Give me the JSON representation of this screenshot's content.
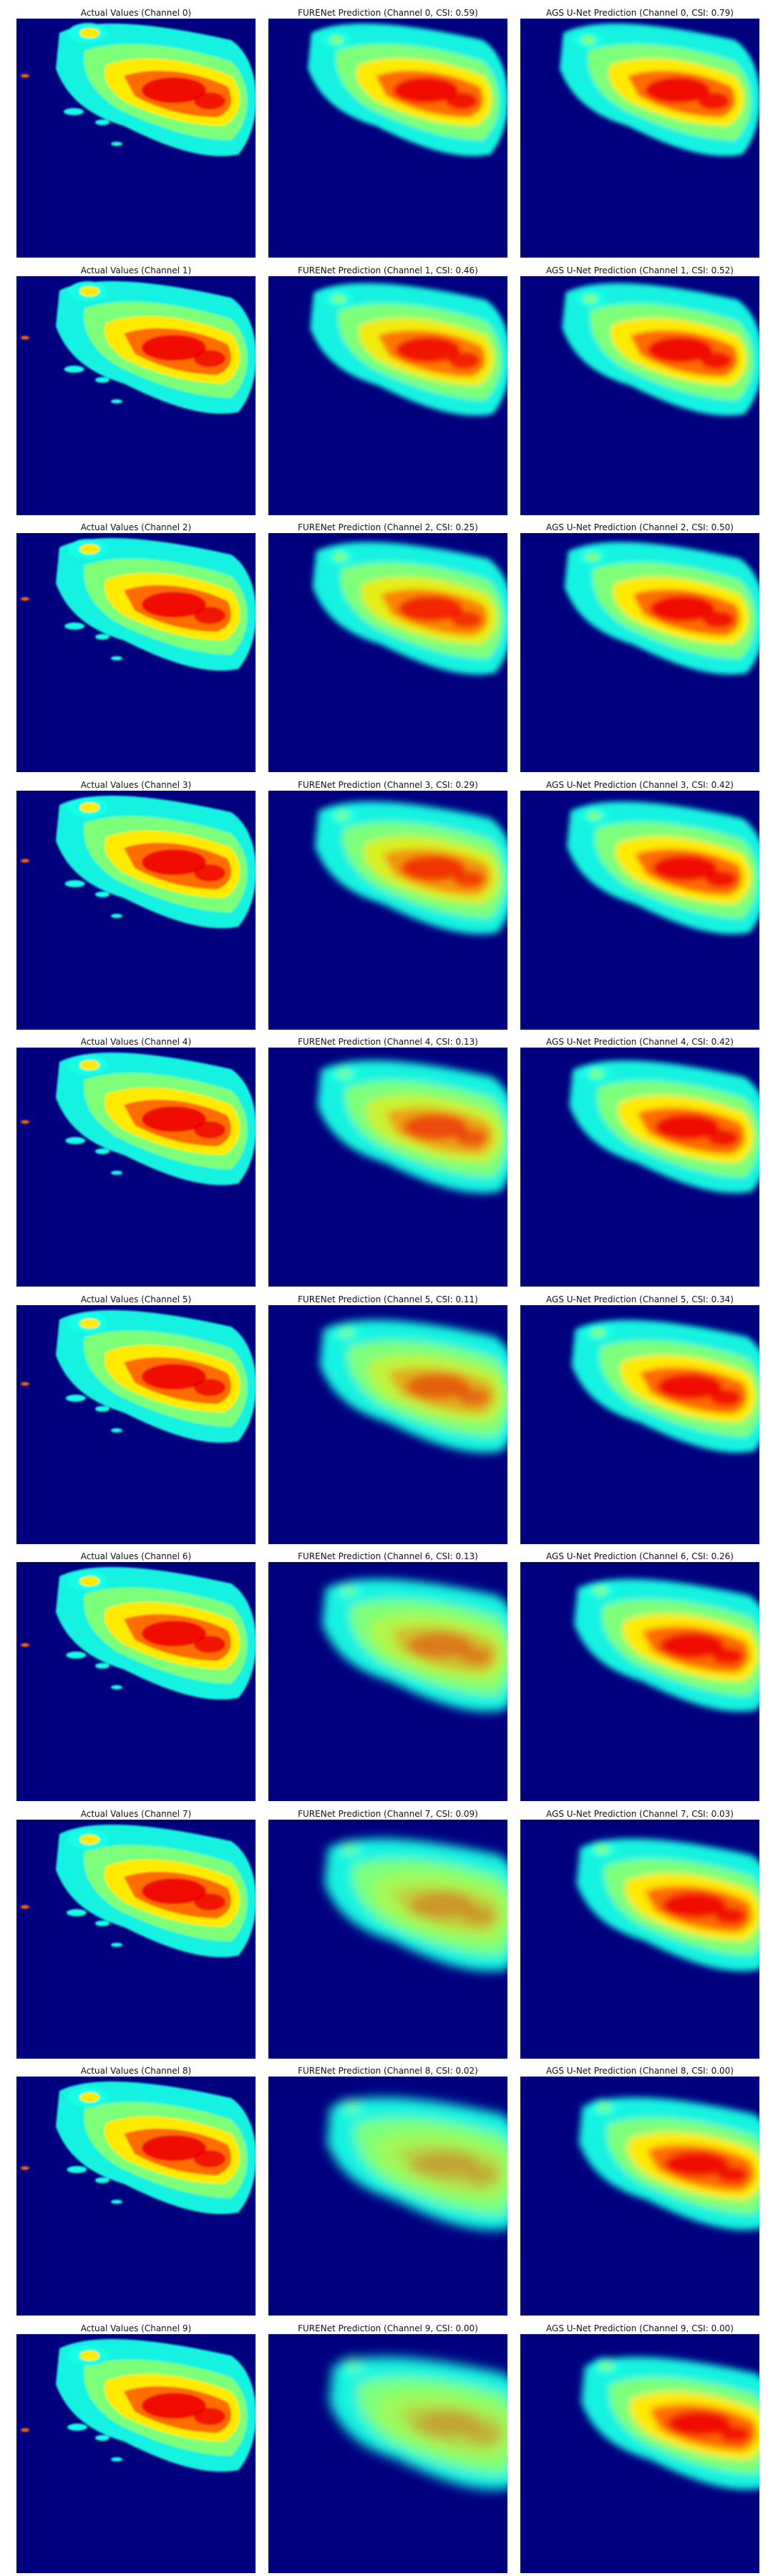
{
  "chart_data": {
    "type": "heatmap",
    "colormap": "jet",
    "background_value": 0,
    "column_headers": [
      "Actual Values",
      "FURENet Prediction",
      "AGS U-Net Prediction"
    ],
    "rows": [
      {
        "channel": 0,
        "titles": [
          "Actual Values (Channel 0)",
          "FURENet Prediction (Channel 0, CSI: 0.59)",
          "AGS U-Net Prediction (Channel 0, CSI: 0.79)"
        ],
        "csi": {
          "furenet": 0.59,
          "ags_unet": 0.79
        }
      },
      {
        "channel": 1,
        "titles": [
          "Actual Values (Channel 1)",
          "FURENet Prediction (Channel 1, CSI: 0.46)",
          "AGS U-Net Prediction (Channel 1, CSI: 0.52)"
        ],
        "csi": {
          "furenet": 0.46,
          "ags_unet": 0.52
        }
      },
      {
        "channel": 2,
        "titles": [
          "Actual Values (Channel 2)",
          "FURENet Prediction (Channel 2, CSI: 0.25)",
          "AGS U-Net Prediction (Channel 2, CSI: 0.50)"
        ],
        "csi": {
          "furenet": 0.25,
          "ags_unet": 0.5
        }
      },
      {
        "channel": 3,
        "titles": [
          "Actual Values (Channel 3)",
          "FURENet Prediction (Channel 3, CSI: 0.29)",
          "AGS U-Net Prediction (Channel 3, CSI: 0.42)"
        ],
        "csi": {
          "furenet": 0.29,
          "ags_unet": 0.42
        }
      },
      {
        "channel": 4,
        "titles": [
          "Actual Values (Channel 4)",
          "FURENet Prediction (Channel 4, CSI: 0.13)",
          "AGS U-Net Prediction (Channel 4, CSI: 0.42)"
        ],
        "csi": {
          "furenet": 0.13,
          "ags_unet": 0.42
        }
      },
      {
        "channel": 5,
        "titles": [
          "Actual Values (Channel 5)",
          "FURENet Prediction (Channel 5, CSI: 0.11)",
          "AGS U-Net Prediction (Channel 5, CSI: 0.34)"
        ],
        "csi": {
          "furenet": 0.11,
          "ags_unet": 0.34
        }
      },
      {
        "channel": 6,
        "titles": [
          "Actual Values (Channel 6)",
          "FURENet Prediction (Channel 6, CSI: 0.13)",
          "AGS U-Net Prediction (Channel 6, CSI: 0.26)"
        ],
        "csi": {
          "furenet": 0.13,
          "ags_unet": 0.26
        }
      },
      {
        "channel": 7,
        "titles": [
          "Actual Values (Channel 7)",
          "FURENet Prediction (Channel 7, CSI: 0.09)",
          "AGS U-Net Prediction (Channel 7, CSI: 0.03)"
        ],
        "csi": {
          "furenet": 0.09,
          "ags_unet": 0.03
        }
      },
      {
        "channel": 8,
        "titles": [
          "Actual Values (Channel 8)",
          "FURENet Prediction (Channel 8, CSI: 0.02)",
          "AGS U-Net Prediction (Channel 8, CSI: 0.00)"
        ],
        "csi": {
          "furenet": 0.02,
          "ags_unet": 0.0
        }
      },
      {
        "channel": 9,
        "titles": [
          "Actual Values (Channel 9)",
          "FURENet Prediction (Channel 9, CSI: 0.00)",
          "AGS U-Net Prediction (Channel 9, CSI: 0.00)"
        ],
        "csi": {
          "furenet": 0.0,
          "ags_unet": 0.0
        }
      }
    ]
  },
  "colors": {
    "background": "#00007f",
    "cyan": "#19ffe6",
    "green": "#7dff7a",
    "yellow": "#ffea00",
    "orange": "#ff6c00",
    "red": "#ee0000",
    "lightblue": "#3fc0ff"
  }
}
